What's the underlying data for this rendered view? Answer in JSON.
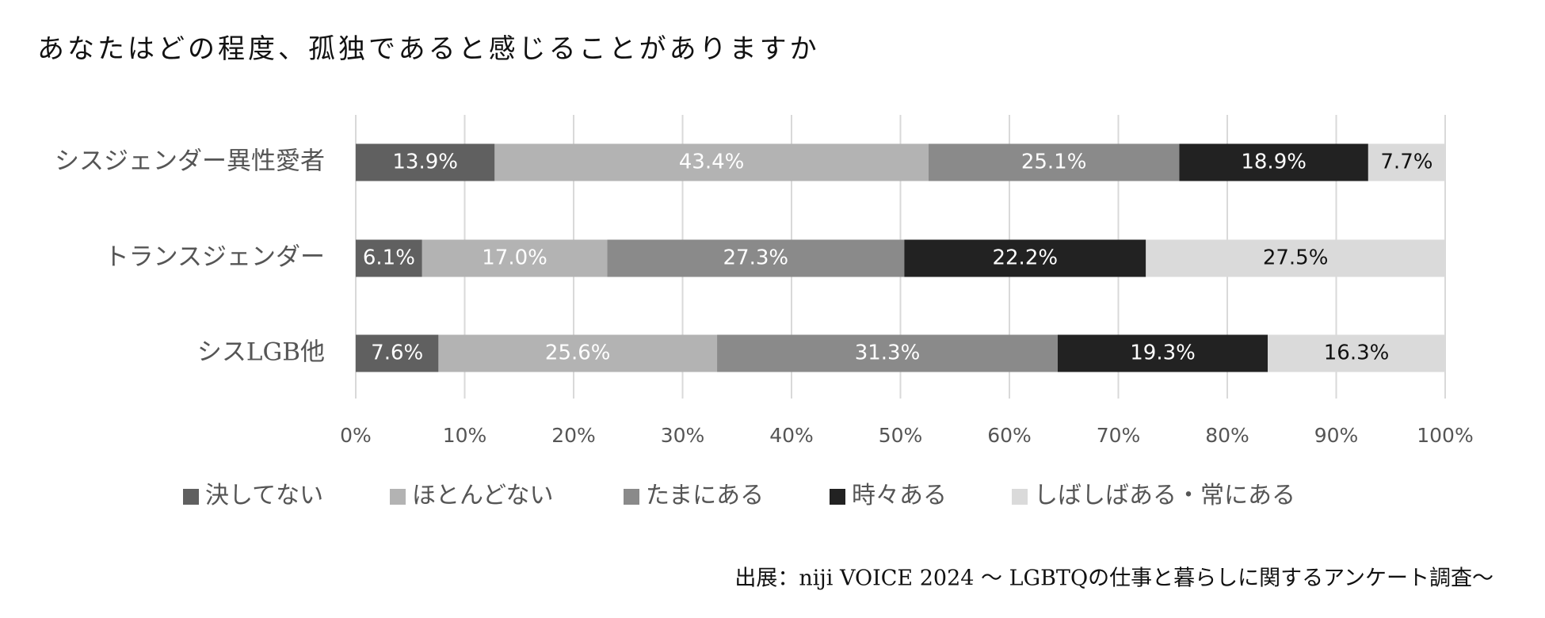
{
  "chart_data": {
    "type": "bar",
    "orientation": "horizontal",
    "stacking": "percent",
    "title": "あなたはどの程度、孤独であると感じることがありますか",
    "source": "出展：niji VOICE 2024 〜 LGBTQの仕事と暮らしに関するアンケート調査〜",
    "categories": [
      "シスジェンダー異性愛者",
      "トランスジェンダー",
      "シスLGB他"
    ],
    "series": [
      {
        "name": "決してない",
        "color": "#606060",
        "label_color": "#ffffff",
        "values": [
          13.9,
          6.1,
          7.6
        ],
        "value_labels": [
          "13.9%",
          "6.1%",
          "7.6%"
        ]
      },
      {
        "name": "ほとんどない",
        "color": "#b3b3b3",
        "label_color": "#ffffff",
        "values": [
          43.4,
          17.0,
          25.6
        ],
        "value_labels": [
          "43.4%",
          "17.0%",
          "25.6%"
        ]
      },
      {
        "name": "たまにある",
        "color": "#8a8a8a",
        "label_color": "#ffffff",
        "values": [
          25.1,
          27.3,
          31.3
        ],
        "value_labels": [
          "25.1%",
          "27.3%",
          "31.3%"
        ]
      },
      {
        "name": "時々ある",
        "color": "#222222",
        "label_color": "#ffffff",
        "values": [
          18.9,
          22.2,
          19.3
        ],
        "value_labels": [
          "18.9%",
          "22.2%",
          "19.3%"
        ]
      },
      {
        "name": "しばしばある・常にある",
        "color": "#dadada",
        "label_color": "#111111",
        "values": [
          7.7,
          27.5,
          16.3
        ],
        "value_labels": [
          "7.7%",
          "27.5%",
          "16.3%"
        ]
      }
    ],
    "xlim": [
      0,
      100
    ],
    "xticks": [
      {
        "value": 0,
        "label": "0%"
      },
      {
        "value": 10,
        "label": "10%"
      },
      {
        "value": 20,
        "label": "20%"
      },
      {
        "value": 30,
        "label": "30%"
      },
      {
        "value": 40,
        "label": "40%"
      },
      {
        "value": 50,
        "label": "50%"
      },
      {
        "value": 60,
        "label": "60%"
      },
      {
        "value": 70,
        "label": "70%"
      },
      {
        "value": 80,
        "label": "80%"
      },
      {
        "value": 90,
        "label": "90%"
      },
      {
        "value": 100,
        "label": "100%"
      }
    ],
    "grid": true,
    "legend": "bottom"
  }
}
